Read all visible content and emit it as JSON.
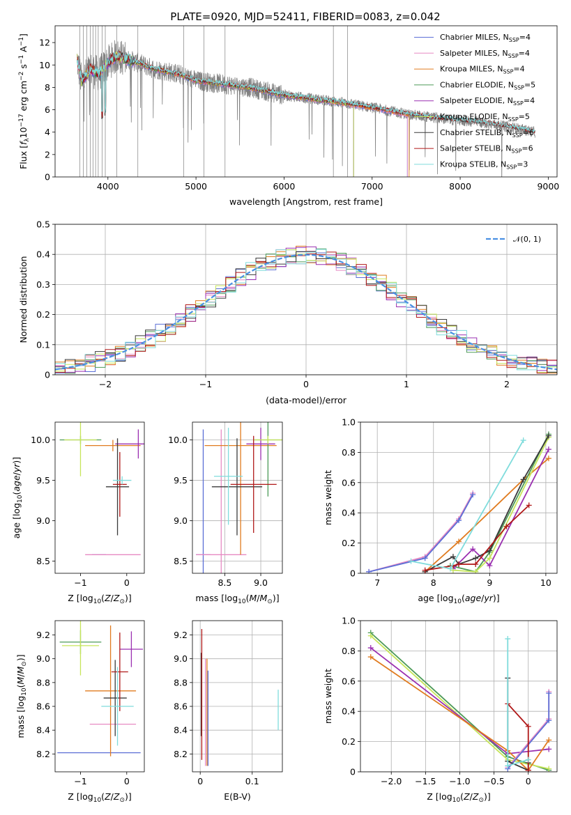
{
  "figure": {
    "title": "PLATE=0920, MJD=52411, FIBERID=0083, z=0.042"
  },
  "colors": {
    "Chabrier MILES": "#5b6fd6",
    "Salpeter MILES": "#e78ac3",
    "Kroupa MILES": "#e07b1f",
    "Chabrier ELODIE": "#4c9a57",
    "Salpeter ELODIE": "#9a2fb0",
    "Kroupa ELODIE": "#c6e55a",
    "Chabrier STELIB": "#3a3a3a",
    "Salpeter STELIB": "#b01818",
    "Kroupa STELIB": "#7fdcdc",
    "data": "#808080",
    "normal": "#4a90e2"
  },
  "chart_data": [
    {
      "id": "spectrum",
      "type": "line",
      "xlabel": "wavelength [Angstrom, rest frame]",
      "ylabel": "Flux [fλ10^-17 erg cm^-2 s^-1 A^-1]",
      "xlim": [
        3400,
        9100
      ],
      "ylim": [
        0,
        13.5
      ],
      "xticks": [
        4000,
        5000,
        6000,
        7000,
        8000,
        9000
      ],
      "yticks": [
        0,
        2,
        4,
        6,
        8,
        10,
        12
      ],
      "legend_position": "top-right",
      "legend": [
        {
          "base": "Chabrier MILES, N",
          "sub": "SSP",
          "tail": "=4"
        },
        {
          "base": "Salpeter MILES, N",
          "sub": "SSP",
          "tail": "=4"
        },
        {
          "base": "Kroupa MILES, N",
          "sub": "SSP",
          "tail": "=4"
        },
        {
          "base": "Chabrier ELODIE, N",
          "sub": "SSP",
          "tail": "=5"
        },
        {
          "base": "Salpeter ELODIE, N",
          "sub": "SSP",
          "tail": "=4"
        },
        {
          "base": "Kroupa ELODIE, N",
          "sub": "SSP",
          "tail": "=5"
        },
        {
          "base": "Chabrier STELIB, N",
          "sub": "SSP",
          "tail": "=6"
        },
        {
          "base": "Salpeter STELIB, N",
          "sub": "SSP",
          "tail": "=6"
        },
        {
          "base": "Kroupa STELIB, N",
          "sub": "SSP",
          "tail": "=3"
        }
      ],
      "model_continuum": {
        "wavelength": [
          3650,
          3700,
          3800,
          3900,
          4000,
          4100,
          4300,
          4500,
          4800,
          5000,
          5300,
          5600,
          6000,
          6300,
          6600,
          7000,
          7400,
          7800,
          8200,
          8600,
          8850
        ],
        "flux": [
          10.5,
          8.5,
          9.6,
          9.2,
          10.2,
          10.8,
          10.3,
          9.7,
          9.2,
          8.6,
          8.3,
          8.0,
          7.3,
          7.0,
          6.7,
          6.2,
          5.6,
          5.2,
          4.9,
          4.4,
          4.0
        ]
      }
    },
    {
      "id": "residuals",
      "type": "line",
      "xlabel": "(data-model)/error",
      "ylabel": "Normed distribution",
      "xlim": [
        -2.5,
        2.5
      ],
      "ylim": [
        0,
        0.5
      ],
      "xticks": [
        -2,
        -1,
        0,
        1,
        2
      ],
      "yticks": [
        0.0,
        0.1,
        0.2,
        0.3,
        0.4,
        0.5
      ],
      "legend_label": "𝒩(0, 1)",
      "legend_position": "top-right",
      "bin_width": 0.1
    },
    {
      "id": "age-vs-Z",
      "type": "scatter",
      "xlabel": "Z [log10(Z/Z⊙)]",
      "ylabel": "age [log10(age/yr)]",
      "xlim": [
        -1.55,
        0.38
      ],
      "ylim": [
        8.35,
        10.22
      ],
      "xticks": [
        -1,
        0
      ],
      "yticks": [
        8.5,
        9.0,
        9.5,
        10.0
      ],
      "errorbars": [
        {
          "model": "Chabrier MILES",
          "x": -0.6,
          "y": 8.58,
          "xerr": 0.15,
          "yerr": 0.0
        },
        {
          "model": "Salpeter MILES",
          "x": -0.3,
          "y": 8.58,
          "xerr": 0.6,
          "yerr": 0.0
        },
        {
          "model": "Kroupa MILES",
          "x": -0.3,
          "y": 9.93,
          "xerr": 0.6,
          "yerr": 0.07
        },
        {
          "model": "Chabrier ELODIE",
          "x": -1.0,
          "y": 10.0,
          "xerr": 0.45,
          "yerr": 0.05
        },
        {
          "model": "Salpeter ELODIE",
          "x": 0.25,
          "y": 9.95,
          "xerr": 0.5,
          "yerr": 0.18
        },
        {
          "model": "Kroupa ELODIE",
          "x": -1.0,
          "y": 10.0,
          "xerr": 0.35,
          "yerr": 0.45
        },
        {
          "model": "Chabrier STELIB",
          "x": -0.2,
          "y": 9.42,
          "xerr": 0.25,
          "yerr": 0.6
        },
        {
          "model": "Salpeter STELIB",
          "x": -0.15,
          "y": 9.45,
          "xerr": 0.15,
          "yerr": 0.4
        },
        {
          "model": "Kroupa STELIB",
          "x": -0.1,
          "y": 9.5,
          "xerr": 0.2,
          "yerr": 0.05
        }
      ]
    },
    {
      "id": "age-vs-mass",
      "type": "scatter",
      "xlabel": "mass [log10(M/M⊙)]",
      "ylabel": "",
      "xlim": [
        8.05,
        9.3
      ],
      "ylim": [
        8.35,
        10.22
      ],
      "xticks": [
        8.5,
        9.0
      ],
      "yticks": [
        8.5,
        9.0,
        9.5,
        10.0
      ],
      "errorbars": [
        {
          "model": "Chabrier MILES",
          "x": 8.2,
          "y": 8.58,
          "xerr": 0.1,
          "yerr": 1.55
        },
        {
          "model": "Salpeter MILES",
          "x": 8.45,
          "y": 8.58,
          "xerr": 0.35,
          "yerr": 1.55
        },
        {
          "model": "Kroupa MILES",
          "x": 8.72,
          "y": 9.93,
          "xerr": 0.5,
          "yerr": 1.35
        },
        {
          "model": "Chabrier ELODIE",
          "x": 9.1,
          "y": 10.0,
          "xerr": 0.2,
          "yerr": 0.7
        },
        {
          "model": "Salpeter ELODIE",
          "x": 9.0,
          "y": 9.95,
          "xerr": 0.2,
          "yerr": 0.2
        },
        {
          "model": "Kroupa ELODIE",
          "x": 9.1,
          "y": 10.0,
          "xerr": 0.2,
          "yerr": 0.05
        },
        {
          "model": "Chabrier STELIB",
          "x": 8.67,
          "y": 9.42,
          "xerr": 0.35,
          "yerr": 0.6
        },
        {
          "model": "Salpeter STELIB",
          "x": 8.9,
          "y": 9.45,
          "xerr": 0.32,
          "yerr": 0.6
        },
        {
          "model": "Kroupa STELIB",
          "x": 8.55,
          "y": 9.55,
          "xerr": 0.2,
          "yerr": 0.6
        }
      ]
    },
    {
      "id": "mass-weight-vs-age",
      "type": "line",
      "xlabel": "age [log10(age/yr)]",
      "ylabel": "mass weight",
      "xlim": [
        6.7,
        10.2
      ],
      "ylim": [
        0,
        1.0
      ],
      "xticks": [
        7,
        8,
        9,
        10
      ],
      "yticks": [
        0.0,
        0.2,
        0.4,
        0.6,
        0.8,
        1.0
      ],
      "series": [
        {
          "model": "Salpeter MILES",
          "x": [
            6.85,
            7.85,
            8.45,
            8.7
          ],
          "y": [
            0.01,
            0.11,
            0.36,
            0.53
          ]
        },
        {
          "model": "Chabrier MILES",
          "x": [
            6.85,
            7.85,
            8.45,
            8.7
          ],
          "y": [
            0.01,
            0.1,
            0.35,
            0.52
          ]
        },
        {
          "model": "Kroupa MILES",
          "x": [
            7.85,
            8.45,
            9.6,
            10.05
          ],
          "y": [
            0.01,
            0.21,
            0.62,
            0.76
          ]
        },
        {
          "model": "Chabrier ELODIE",
          "x": [
            8.3,
            8.75,
            9.0,
            10.05
          ],
          "y": [
            0.05,
            0.01,
            0.14,
            0.92
          ]
        },
        {
          "model": "Salpeter ELODIE",
          "x": [
            8.35,
            8.7,
            9.0,
            10.05
          ],
          "y": [
            0.03,
            0.16,
            0.05,
            0.82
          ]
        },
        {
          "model": "Kroupa ELODIE",
          "x": [
            8.35,
            8.75,
            9.0,
            10.05
          ],
          "y": [
            0.02,
            0.01,
            0.1,
            0.9
          ]
        },
        {
          "model": "Chabrier STELIB",
          "x": [
            7.85,
            8.35,
            8.45,
            8.75,
            9.0,
            9.6,
            10.05
          ],
          "y": [
            0.01,
            0.11,
            0.06,
            0.1,
            0.15,
            0.62,
            0.91
          ]
        },
        {
          "model": "Salpeter STELIB",
          "x": [
            7.85,
            8.35,
            8.45,
            8.75,
            9.3,
            9.7
          ],
          "y": [
            0.02,
            0.05,
            0.06,
            0.06,
            0.31,
            0.45
          ]
        },
        {
          "model": "Kroupa STELIB",
          "x": [
            7.6,
            8.3,
            9.6
          ],
          "y": [
            0.08,
            0.03,
            0.88
          ]
        }
      ]
    },
    {
      "id": "mass-vs-Z",
      "type": "scatter",
      "xlabel": "Z [log10(Z/Z⊙)]",
      "ylabel": "mass [log10(M/M⊙)]",
      "xlim": [
        -1.55,
        0.38
      ],
      "ylim": [
        8.05,
        9.32
      ],
      "xticks": [
        -1,
        0
      ],
      "yticks": [
        8.2,
        8.4,
        8.6,
        8.8,
        9.0,
        9.2
      ],
      "errorbars": [
        {
          "model": "Chabrier MILES",
          "x": -0.6,
          "y": 8.21,
          "xerr": 0.9,
          "yerr": 0.0
        },
        {
          "model": "Salpeter MILES",
          "x": -0.3,
          "y": 8.45,
          "xerr": 0.5,
          "yerr": 0.0
        },
        {
          "model": "Kroupa MILES",
          "x": -0.35,
          "y": 8.73,
          "xerr": 0.55,
          "yerr": 0.55
        },
        {
          "model": "Chabrier ELODIE",
          "x": -1.0,
          "y": 9.14,
          "xerr": 0.45,
          "yerr": 0.1
        },
        {
          "model": "Salpeter ELODIE",
          "x": 0.1,
          "y": 9.08,
          "xerr": 0.25,
          "yerr": 0.15
        },
        {
          "model": "Kroupa ELODIE",
          "x": -1.0,
          "y": 9.11,
          "xerr": 0.4,
          "yerr": 0.25
        },
        {
          "model": "Chabrier STELIB",
          "x": -0.25,
          "y": 8.67,
          "xerr": 0.25,
          "yerr": 0.32
        },
        {
          "model": "Salpeter STELIB",
          "x": -0.15,
          "y": 8.89,
          "xerr": 0.18,
          "yerr": 0.33
        },
        {
          "model": "Kroupa STELIB",
          "x": -0.2,
          "y": 8.6,
          "xerr": 0.35,
          "yerr": 0.33
        }
      ]
    },
    {
      "id": "mass-vs-ebv",
      "type": "scatter",
      "xlabel": "E(B-V)",
      "ylabel": "",
      "xlim": [
        -0.015,
        0.158
      ],
      "ylim": [
        8.05,
        9.32
      ],
      "xticks": [
        0.0,
        0.1
      ],
      "yticks": [
        8.2,
        8.4,
        8.6,
        8.8,
        9.0,
        9.2
      ],
      "errorbars": [
        {
          "model": "Chabrier MILES",
          "x": 0.015,
          "y": 8.5,
          "xerr": 0,
          "yerr": 0.4
        },
        {
          "model": "Salpeter MILES",
          "x": 0.01,
          "y": 8.55,
          "xerr": 0,
          "yerr": 0.45
        },
        {
          "model": "Kroupa MILES",
          "x": 0.013,
          "y": 8.55,
          "xerr": 0,
          "yerr": 0.45
        },
        {
          "model": "Chabrier STELIB",
          "x": 0.002,
          "y": 8.7,
          "xerr": 0,
          "yerr": 0.35
        },
        {
          "model": "Salpeter STELIB",
          "x": 0.003,
          "y": 8.7,
          "xerr": 0,
          "yerr": 0.55
        },
        {
          "model": "Kroupa STELIB",
          "x": 0.15,
          "y": 8.57,
          "xerr": 0,
          "yerr": 0.17
        }
      ]
    },
    {
      "id": "mass-weight-vs-Z",
      "type": "line",
      "xlabel": "Z [log10(Z/Z⊙)]",
      "ylabel": "mass weight",
      "xlim": [
        -2.45,
        0.42
      ],
      "ylim": [
        0,
        1.0
      ],
      "xticks": [
        -2.0,
        -1.5,
        -1.0,
        -0.5,
        0.0
      ],
      "yticks": [
        0.0,
        0.2,
        0.4,
        0.6,
        0.8,
        1.0
      ],
      "series": [
        {
          "model": "Chabrier ELODIE",
          "x": [
            -2.3,
            -0.3,
            0.3
          ],
          "y": [
            0.92,
            0.1,
            0.01
          ]
        },
        {
          "model": "Kroupa ELODIE",
          "x": [
            -2.3,
            -0.3,
            0.3
          ],
          "y": [
            0.9,
            0.08,
            0.02
          ]
        },
        {
          "model": "Salpeter ELODIE",
          "x": [
            -2.3,
            -0.3,
            0.3
          ],
          "y": [
            0.82,
            0.12,
            0.15
          ]
        },
        {
          "model": "Kroupa MILES",
          "x": [
            -2.3,
            -0.3,
            0.0,
            0.3
          ],
          "y": [
            0.76,
            0.14,
            0.01,
            0.21
          ]
        },
        {
          "model": "Salpeter MILES",
          "x": [
            -0.3,
            0.3,
            0.3
          ],
          "y": [
            0.03,
            0.35,
            0.53
          ]
        },
        {
          "model": "Chabrier MILES",
          "x": [
            -0.3,
            0.3,
            0.3
          ],
          "y": [
            0.02,
            0.34,
            0.52
          ]
        },
        {
          "model": "Chabrier STELIB",
          "x": [
            -0.3,
            -0.3,
            0.0,
            0.0
          ],
          "y": [
            0.62,
            0.07,
            0.01,
            0.06
          ]
        },
        {
          "model": "Salpeter STELIB",
          "x": [
            -0.3,
            0.0,
            0.0
          ],
          "y": [
            0.45,
            0.3,
            0.01
          ]
        },
        {
          "model": "Kroupa STELIB",
          "x": [
            -0.3,
            -0.3,
            0.0
          ],
          "y": [
            0.88,
            0.04,
            0.08
          ]
        }
      ]
    }
  ]
}
